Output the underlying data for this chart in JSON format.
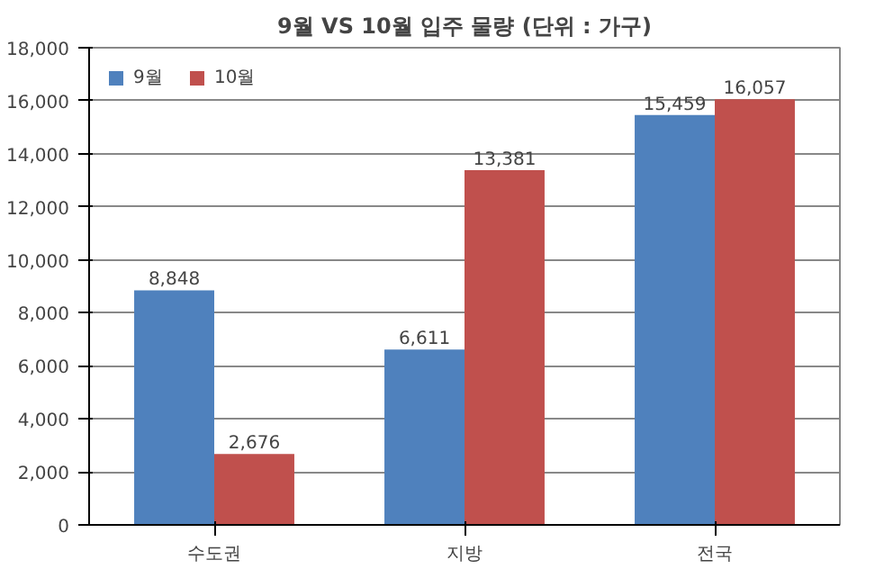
{
  "chart_data": {
    "type": "bar",
    "title": "9월 VS 10월 입주 물량 (단위 : 가구)",
    "categories": [
      "수도권",
      "지방",
      "전국"
    ],
    "series": [
      {
        "name": "9월",
        "color": "#4f81bd",
        "values": [
          8848,
          6611,
          15459
        ],
        "value_labels": [
          "8,848",
          "6,611",
          "15,459"
        ]
      },
      {
        "name": "10월",
        "color": "#c0504d",
        "values": [
          2676,
          13381,
          16057
        ],
        "value_labels": [
          "2,676",
          "13,381",
          "16,057"
        ]
      }
    ],
    "ylim": [
      0,
      18000
    ],
    "yticks": [
      0,
      {
        "value": 2000,
        "label": "2,000"
      },
      {
        "value": 4000,
        "label": "4,000"
      },
      {
        "value": 6000,
        "label": "6,000"
      },
      {
        "value": 8000,
        "label": "8,000"
      },
      {
        "value": 10000,
        "label": "10,000"
      },
      {
        "value": 12000,
        "label": "12,000"
      },
      {
        "value": 14000,
        "label": "14,000"
      },
      {
        "value": 16000,
        "label": "16,000"
      },
      {
        "value": 18000,
        "label": "18,000"
      }
    ],
    "grid": "y",
    "legend": "top left"
  }
}
